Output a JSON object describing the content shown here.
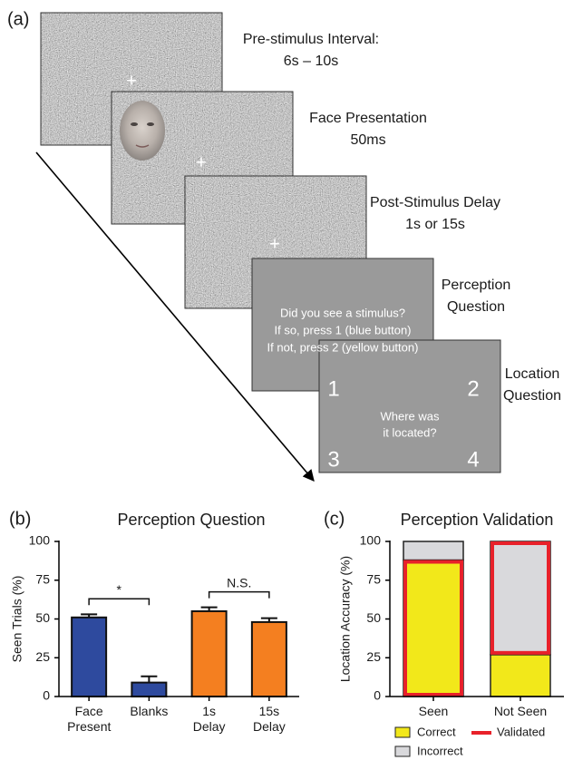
{
  "panel_a": {
    "panel_label": "(a)",
    "screens": [
      {
        "label_lines": [
          "Pre-stimulus Interval:",
          "6s – 10s"
        ],
        "symbol": "+"
      },
      {
        "label_lines": [
          "Face Presentation",
          "50ms"
        ],
        "symbol": "+"
      },
      {
        "label_lines": [
          "Post-Stimulus Delay",
          "1s or 15s"
        ],
        "symbol": "+"
      },
      {
        "label_lines": [
          "Perception",
          "Question"
        ],
        "screen_lines": [
          "Did you see a stimulus?",
          "If so, press 1 (blue button)",
          "If not, press 2 (yellow button)"
        ]
      },
      {
        "label_lines": [
          "Location",
          "Question"
        ],
        "corners": [
          "1",
          "2",
          "3",
          "4"
        ],
        "screen_lines": [
          "Where was",
          "it located?"
        ]
      }
    ]
  },
  "chart_data": [
    {
      "type": "bar",
      "panel_label": "(b)",
      "title": "Perception Question",
      "y_label": "Seen Trials (%)",
      "categories": [
        "Face Present",
        "Blanks",
        "1s Delay",
        "15s Delay"
      ],
      "values": [
        51,
        9,
        55,
        48
      ],
      "errors": [
        2,
        4,
        2.5,
        2.5
      ],
      "colors": [
        "#2e4a9e",
        "#2e4a9e",
        "#f47f20",
        "#f47f20"
      ],
      "ylim": [
        0,
        100
      ],
      "yticks": [
        0,
        25,
        50,
        75,
        100
      ],
      "annotations": [
        {
          "text": "*",
          "between": [
            0,
            1
          ]
        },
        {
          "text": "N.S.",
          "between": [
            2,
            3
          ]
        }
      ]
    },
    {
      "type": "stacked_bar",
      "panel_label": "(c)",
      "title": "Perception Validation",
      "y_label": "Location Accuracy (%)",
      "categories": [
        "Seen",
        "Not Seen"
      ],
      "series": [
        {
          "name": "Correct",
          "color": "#f2e81a",
          "values": [
            88,
            27
          ]
        },
        {
          "name": "Incorrect",
          "color": "#d9d9dc",
          "values": [
            12,
            73
          ]
        }
      ],
      "validated": {
        "name": "Validated",
        "color": "#e8212a",
        "series": [
          "Correct",
          "Incorrect"
        ]
      },
      "ylim": [
        0,
        100
      ],
      "yticks": [
        0,
        25,
        50,
        75,
        100
      ]
    }
  ]
}
